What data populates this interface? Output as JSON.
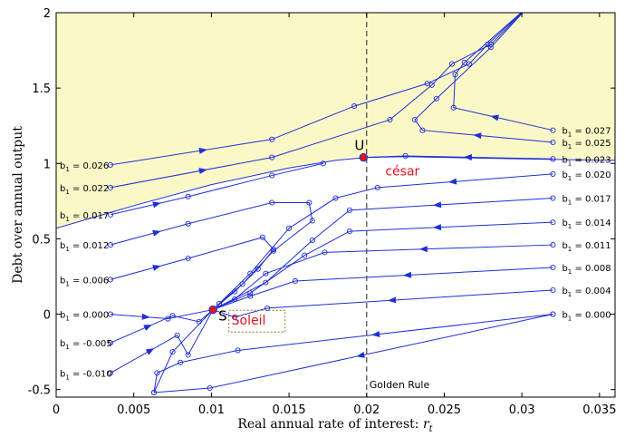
{
  "chart_data": {
    "type": "line",
    "title": "",
    "xlabel": "Real annual rate of interest:",
    "xlabel_symbol": "r",
    "xlabel_subscript": "t",
    "ylabel": "Debt over annual output",
    "xlim": [
      0,
      0.036
    ],
    "ylim": [
      -0.55,
      2.0
    ],
    "x_ticks": [
      0,
      0.005,
      0.01,
      0.015,
      0.02,
      0.025,
      0.03,
      0.035
    ],
    "x_tick_labels": [
      "0",
      "0.005",
      "0.01",
      "0.015",
      "0.02",
      "0.025",
      "0.03",
      "0.035"
    ],
    "y_ticks": [
      -0.5,
      0,
      0.5,
      1,
      1.5,
      2
    ],
    "y_tick_labels": [
      "-0.5",
      "0",
      "0.5",
      "1",
      "1.5",
      "2"
    ],
    "grid": false,
    "colors": {
      "series": "#1f2fd4",
      "shade": "#fbf8c8",
      "marker_red": "#e0141e",
      "boundary": "#1f2fd4"
    },
    "shaded_region": {
      "boundary_x": [
        0,
        0.005,
        0.01,
        0.015,
        0.018,
        0.02,
        0.0225,
        0.025,
        0.03,
        0.036
      ],
      "boundary_y": [
        0.57,
        0.72,
        0.86,
        0.97,
        1.02,
        1.04,
        1.045,
        1.04,
        1.03,
        1.02
      ]
    },
    "golden_rule": {
      "x": 0.02,
      "label": "Golden Rule"
    },
    "points": [
      {
        "label": "U",
        "x": 0.0198,
        "y": 1.04
      },
      {
        "label": "S",
        "x": 0.0101,
        "y": 0.03
      }
    ],
    "annotations": [
      {
        "text": "césar",
        "x": 0.0212,
        "y": 0.92
      },
      {
        "text": "Soleil",
        "x": 0.0113,
        "y": -0.07
      }
    ],
    "left_series": [
      {
        "name": "b1 = 0.026",
        "b_var": "b",
        "b_sub": "1",
        "b_val": "= 0.026",
        "x": [
          0.0035,
          0.0139,
          0.0192,
          0.0239,
          0.0266,
          0.0278,
          0.0305
        ],
        "y": [
          0.99,
          1.16,
          1.38,
          1.53,
          1.66,
          1.79,
          2.05
        ]
      },
      {
        "name": "b1 = 0.022",
        "b_var": "b",
        "b_sub": "1",
        "b_val": "= 0.022",
        "x": [
          0.0035,
          0.0139,
          0.0215,
          0.0242,
          0.0255,
          0.028,
          0.0305
        ],
        "y": [
          0.84,
          1.04,
          1.29,
          1.52,
          1.66,
          1.79,
          2.05
        ]
      },
      {
        "name": "b1 = 0.017",
        "b_var": "b",
        "b_sub": "1",
        "b_val": "= 0.017",
        "x": [
          0.0035,
          0.0085,
          0.0139,
          0.0172
        ],
        "y": [
          0.66,
          0.78,
          0.92,
          1.0
        ]
      },
      {
        "name": "b1 = 0.012",
        "b_var": "b",
        "b_sub": "1",
        "b_val": "= 0.012",
        "x": [
          0.0035,
          0.0085,
          0.0139,
          0.0163,
          0.0165,
          0.014,
          0.012,
          0.0105,
          0.0101
        ],
        "y": [
          0.46,
          0.6,
          0.74,
          0.74,
          0.62,
          0.42,
          0.2,
          0.07,
          0.03
        ]
      },
      {
        "name": "b1 = 0.006",
        "b_var": "b",
        "b_sub": "1",
        "b_val": "= 0.006",
        "x": [
          0.0035,
          0.0085,
          0.0133,
          0.014,
          0.013,
          0.0115,
          0.0101
        ],
        "y": [
          0.23,
          0.37,
          0.51,
          0.43,
          0.3,
          0.15,
          0.03
        ]
      },
      {
        "name": "b1 = 0.000",
        "b_var": "b",
        "b_sub": "1",
        "b_val": "= 0.000",
        "x": [
          0.0035,
          0.0072,
          0.0101
        ],
        "y": [
          0.0,
          -0.03,
          0.03
        ]
      },
      {
        "name": "b1 = -0.005",
        "b_var": "b",
        "b_sub": "1",
        "b_val": "= -0.005",
        "x": [
          0.0035,
          0.0075,
          0.0092,
          0.0101
        ],
        "y": [
          -0.19,
          -0.01,
          -0.05,
          0.03
        ]
      },
      {
        "name": "b1 = -0.010",
        "b_var": "b",
        "b_sub": "1",
        "b_val": "= -0.010",
        "x": [
          0.0035,
          0.0078,
          0.0085,
          0.0101
        ],
        "y": [
          -0.39,
          -0.14,
          -0.27,
          0.03
        ]
      }
    ],
    "right_series": [
      {
        "name": "b1 = 0.027",
        "b_var": "b",
        "b_sub": "1",
        "b_val": "= 0.027",
        "x": [
          0.032,
          0.0256,
          0.0257,
          0.0263,
          0.0305
        ],
        "y": [
          1.22,
          1.37,
          1.59,
          1.67,
          2.05
        ]
      },
      {
        "name": "b1 = 0.025",
        "b_var": "b",
        "b_sub": "1",
        "b_val": "= 0.025",
        "x": [
          0.032,
          0.0236,
          0.0231,
          0.0245,
          0.028,
          0.0305
        ],
        "y": [
          1.14,
          1.22,
          1.29,
          1.43,
          1.77,
          2.05
        ]
      },
      {
        "name": "b1 = 0.023",
        "b_var": "b",
        "b_sub": "1",
        "b_val": "= 0.023",
        "x": [
          0.032,
          0.0225,
          0.0198
        ],
        "y": [
          1.03,
          1.05,
          1.04
        ]
      },
      {
        "name": "b1 = 0.020",
        "b_var": "b",
        "b_sub": "1",
        "b_val": "= 0.020",
        "x": [
          0.032,
          0.0207,
          0.018,
          0.015,
          0.0125,
          0.0101
        ],
        "y": [
          0.93,
          0.84,
          0.77,
          0.57,
          0.27,
          0.03
        ]
      },
      {
        "name": "b1 = 0.017",
        "b_var": "b",
        "b_sub": "1",
        "b_val": "= 0.017",
        "x": [
          0.032,
          0.0189,
          0.0165,
          0.0135,
          0.0101
        ],
        "y": [
          0.77,
          0.69,
          0.49,
          0.21,
          0.03
        ]
      },
      {
        "name": "b1 = 0.014",
        "b_var": "b",
        "b_sub": "1",
        "b_val": "= 0.014",
        "x": [
          0.032,
          0.0189,
          0.016,
          0.0125,
          0.0101
        ],
        "y": [
          0.61,
          0.55,
          0.39,
          0.14,
          0.03
        ]
      },
      {
        "name": "b1 = 0.011",
        "b_var": "b",
        "b_sub": "1",
        "b_val": "= 0.011",
        "x": [
          0.032,
          0.0173,
          0.0135,
          0.0115,
          0.0101
        ],
        "y": [
          0.46,
          0.41,
          0.27,
          0.1,
          0.03
        ]
      },
      {
        "name": "b1 = 0.008",
        "b_var": "b",
        "b_sub": "1",
        "b_val": "= 0.008",
        "x": [
          0.032,
          0.0154,
          0.0125,
          0.0101
        ],
        "y": [
          0.31,
          0.22,
          0.12,
          0.03
        ]
      },
      {
        "name": "b1 = 0.004",
        "b_var": "b",
        "b_sub": "1",
        "b_val": "= 0.004",
        "x": [
          0.032,
          0.0136,
          0.0115,
          0.0101
        ],
        "y": [
          0.16,
          0.04,
          -0.02,
          0.03
        ]
      },
      {
        "name": "b1 = 0.000",
        "b_var": "b",
        "b_sub": "1",
        "b_val": "= 0.000",
        "x": [
          0.032,
          0.0117,
          0.008,
          0.0065,
          0.0063,
          0.0075,
          0.0101
        ],
        "y": [
          0.0,
          -0.24,
          -0.32,
          -0.39,
          -0.52,
          -0.25,
          0.03
        ]
      },
      {
        "name": "b1 = 0.000 lower",
        "x": [
          0.032,
          0.0099,
          0.0063
        ],
        "y": [
          0.0,
          -0.49,
          -0.52
        ]
      }
    ]
  }
}
